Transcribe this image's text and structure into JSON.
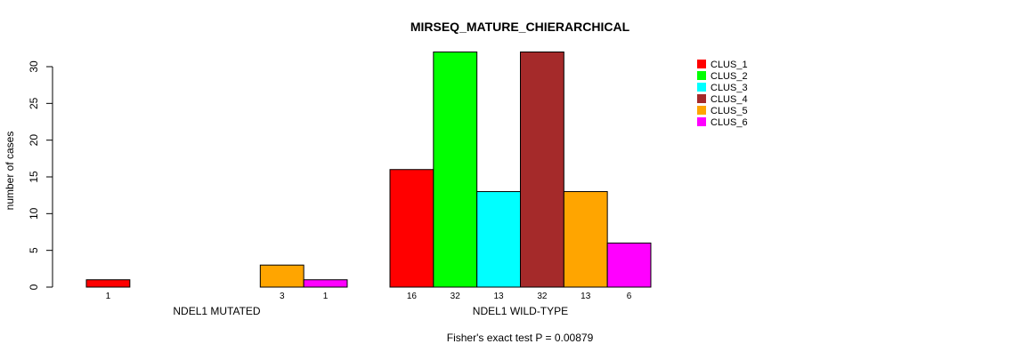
{
  "chart_data": {
    "type": "bar",
    "title": "MIRSEQ_MATURE_CHIERARCHICAL",
    "xlabel": "Fisher's exact test P = 0.00879",
    "ylabel": "number of cases",
    "ylim": [
      0,
      30
    ],
    "yticks": [
      0,
      5,
      10,
      15,
      20,
      25,
      30
    ],
    "categories": [
      "NDEL1 MUTATED",
      "NDEL1 WILD-TYPE"
    ],
    "series": [
      {
        "name": "CLUS_1",
        "color": "#ff0000",
        "values": [
          1,
          16
        ]
      },
      {
        "name": "CLUS_2",
        "color": "#00ff00",
        "values": [
          0,
          32
        ]
      },
      {
        "name": "CLUS_3",
        "color": "#00ffff",
        "values": [
          0,
          13
        ]
      },
      {
        "name": "CLUS_4",
        "color": "#a52a2a",
        "values": [
          0,
          32
        ]
      },
      {
        "name": "CLUS_5",
        "color": "#ffa500",
        "values": [
          3,
          13
        ]
      },
      {
        "name": "CLUS_6",
        "color": "#ff00ff",
        "values": [
          1,
          6
        ]
      }
    ],
    "legend_position": "top-right",
    "grid": false
  }
}
